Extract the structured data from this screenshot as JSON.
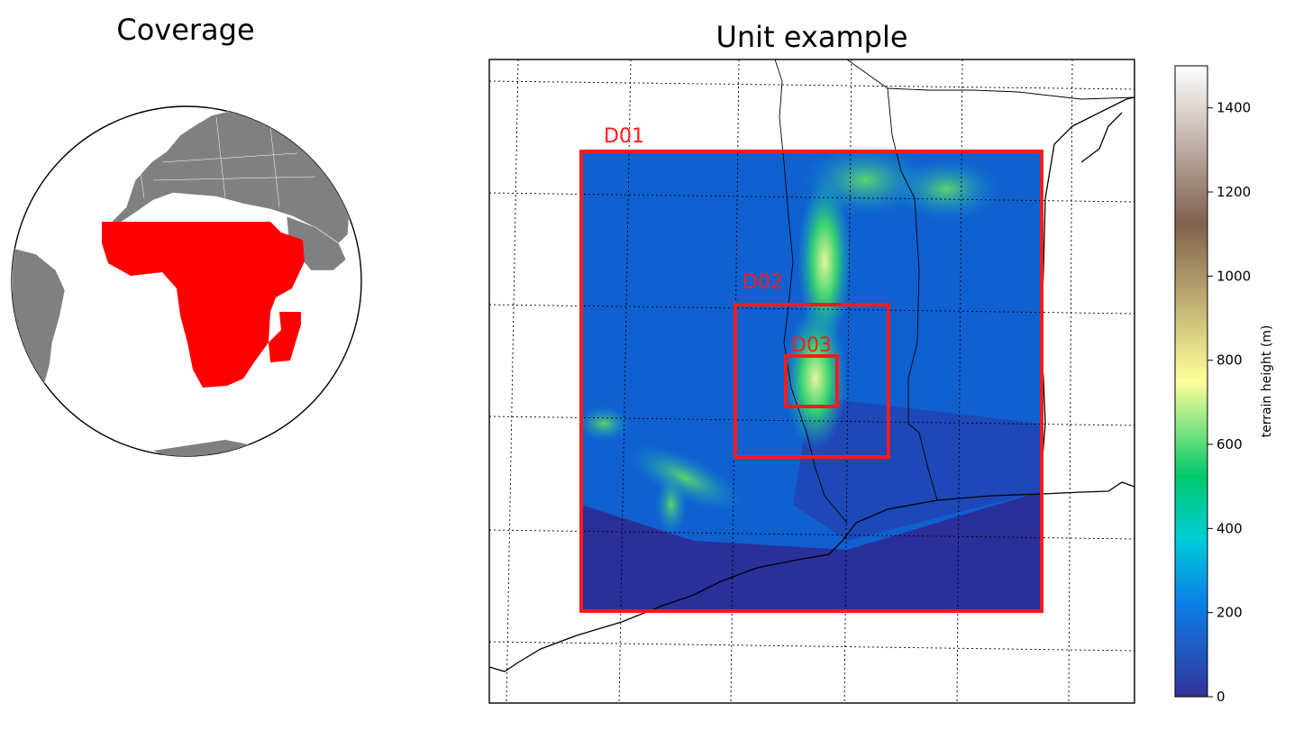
{
  "coverage": {
    "title": "Coverage",
    "highlight_color": "#ff0000",
    "land_color": "#808080"
  },
  "unit_example": {
    "title": "Unit example",
    "domains": [
      {
        "name": "D01"
      },
      {
        "name": "D02"
      },
      {
        "name": "D03"
      }
    ],
    "box_color": "#ff0000"
  },
  "colorbar": {
    "label": "terrain height (m)",
    "ticks": [
      "0",
      "200",
      "400",
      "600",
      "800",
      "1000",
      "1200",
      "1400"
    ],
    "tick_values": [
      0,
      200,
      400,
      600,
      800,
      1000,
      1200,
      1400
    ],
    "range": [
      0,
      1500
    ]
  }
}
